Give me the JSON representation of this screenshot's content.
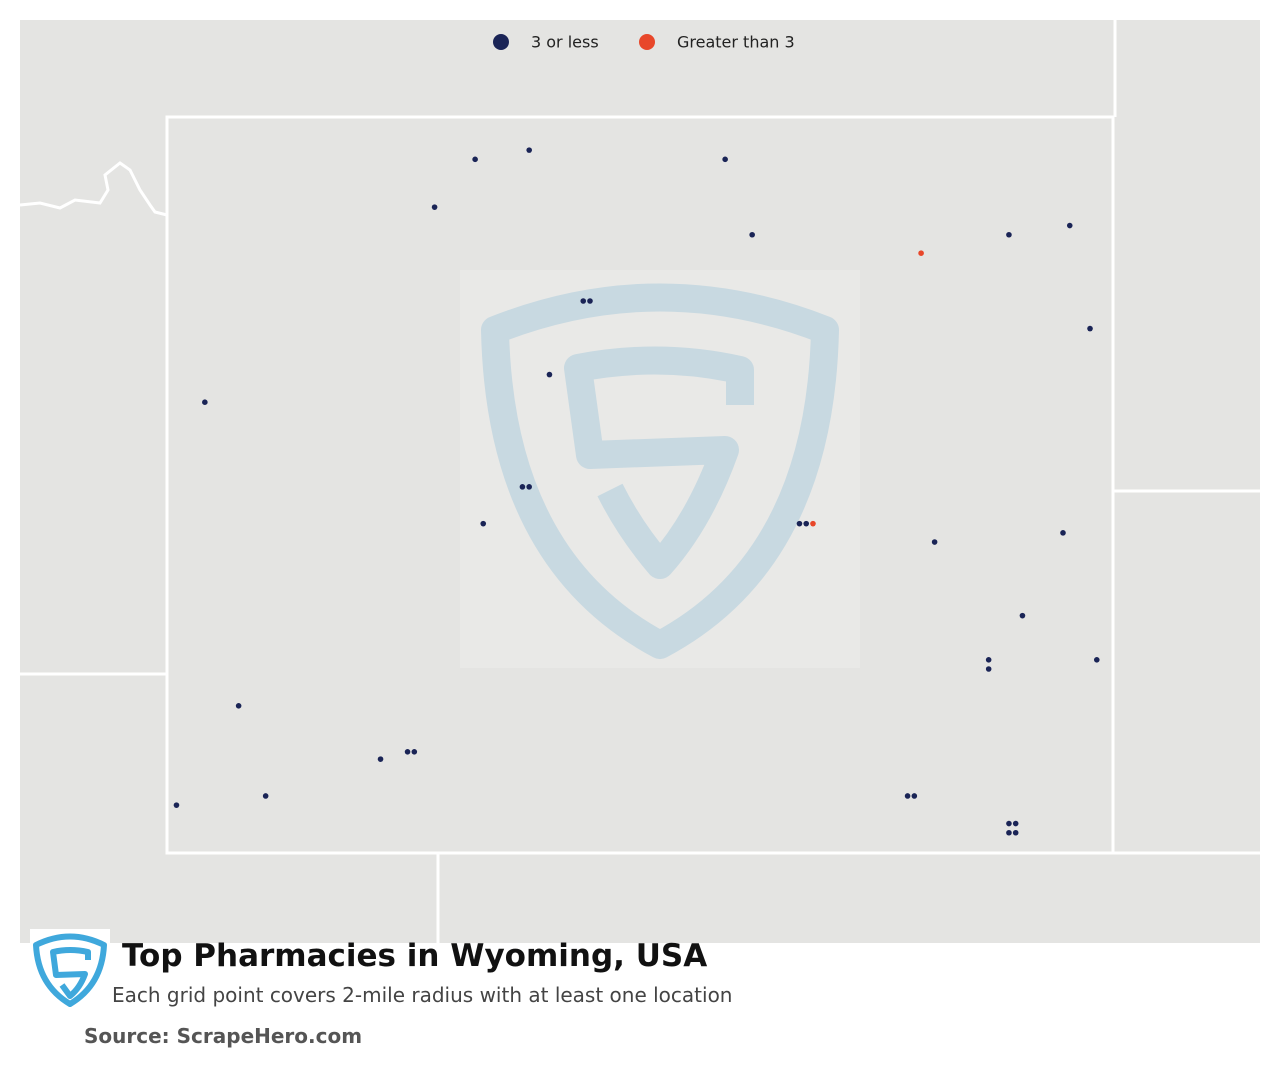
{
  "chart_data": {
    "type": "point-map",
    "title": "Top Pharmacies in Wyoming, USA",
    "subtitle": "Each grid point covers 2-mile radius with at least one location",
    "source": "Source: ScrapeHero.com",
    "lon_bounds": [
      -111.05,
      -104.05
    ],
    "lat_bounds": [
      41,
      45
    ],
    "series": [
      {
        "name": "3 or less",
        "color": "#1a2456",
        "points": [
          [
            -108.77,
            44.77
          ],
          [
            -108.37,
            44.82
          ],
          [
            -106.92,
            44.77
          ],
          [
            -109.07,
            44.51
          ],
          [
            -106.72,
            44.36
          ],
          [
            -104.82,
            44.36
          ],
          [
            -104.37,
            44.41
          ],
          [
            -104.22,
            43.85
          ],
          [
            -107.97,
            44.0
          ],
          [
            -107.92,
            44.0
          ],
          [
            -108.22,
            43.6
          ],
          [
            -110.77,
            43.45
          ],
          [
            -108.42,
            42.99
          ],
          [
            -108.37,
            42.99
          ],
          [
            -108.71,
            42.79
          ],
          [
            -106.37,
            42.79
          ],
          [
            -106.32,
            42.79
          ],
          [
            -105.37,
            42.69
          ],
          [
            -104.42,
            42.74
          ],
          [
            -104.72,
            42.29
          ],
          [
            -104.97,
            42.05
          ],
          [
            -104.97,
            42.0
          ],
          [
            -104.17,
            42.05
          ],
          [
            -110.52,
            41.8
          ],
          [
            -109.47,
            41.51
          ],
          [
            -109.27,
            41.55
          ],
          [
            -109.22,
            41.55
          ],
          [
            -110.98,
            41.26
          ],
          [
            -110.32,
            41.31
          ],
          [
            -105.57,
            41.31
          ],
          [
            -105.52,
            41.31
          ],
          [
            -104.82,
            41.16
          ],
          [
            -104.77,
            41.16
          ],
          [
            -104.82,
            41.11
          ],
          [
            -104.77,
            41.11
          ]
        ]
      },
      {
        "name": "Greater than 3",
        "color": "#e8472a",
        "points": [
          [
            -105.47,
            44.26
          ],
          [
            -106.27,
            42.79
          ]
        ]
      }
    ]
  }
}
